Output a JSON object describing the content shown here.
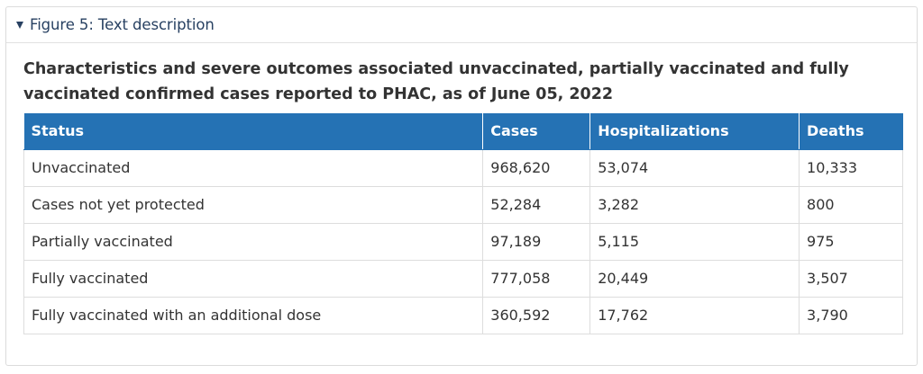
{
  "summary": {
    "label": "Figure 5: Text description"
  },
  "caption": "Characteristics and severe outcomes associated unvaccinated, partially vaccinated and fully vaccinated confirmed cases reported to PHAC, as of June 05, 2022",
  "table": {
    "headers": [
      "Status",
      "Cases",
      "Hospitalizations",
      "Deaths"
    ],
    "rows": [
      [
        "Unvaccinated",
        "968,620",
        "53,074",
        "10,333"
      ],
      [
        "Cases not yet protected",
        "52,284",
        "3,282",
        "800"
      ],
      [
        "Partially vaccinated",
        "97,189",
        "5,115",
        "975"
      ],
      [
        "Fully vaccinated",
        "777,058",
        "20,449",
        "3,507"
      ],
      [
        "Fully vaccinated with an additional dose",
        "360,592",
        "17,762",
        "3,790"
      ]
    ]
  },
  "colors": {
    "header_bg": "#2572b4",
    "summary_text": "#284162",
    "body_text": "#333333"
  },
  "icons": {
    "summary_toggle": "caret-down-icon"
  }
}
